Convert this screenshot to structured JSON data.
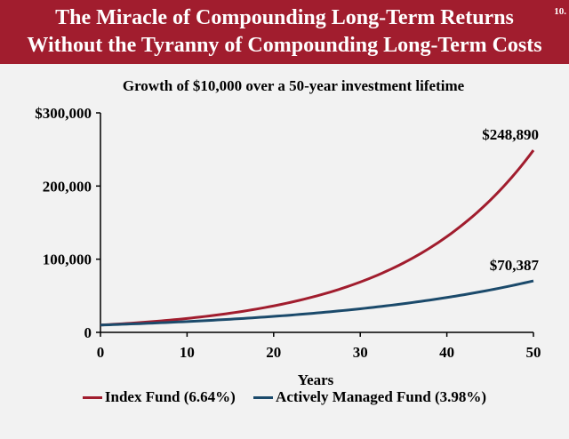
{
  "header": {
    "title_line1": "The Miracle of Compounding Long-Term Returns",
    "title_line2": "Without the Tyranny of Compounding Long-Term Costs",
    "slide_number": "10."
  },
  "chart_data": {
    "type": "line",
    "title": "Growth of $10,000 over a 50-year investment lifetime",
    "xlabel": "Years",
    "ylabel": "",
    "xlim": [
      0,
      50
    ],
    "ylim": [
      0,
      300000
    ],
    "x_ticks": [
      0,
      10,
      20,
      30,
      40,
      50
    ],
    "x_tick_labels": [
      "0",
      "10",
      "20",
      "30",
      "40",
      "50"
    ],
    "y_ticks": [
      0,
      100000,
      200000,
      300000
    ],
    "y_tick_labels": [
      "0",
      "100,000",
      "200,000",
      "$300,000"
    ],
    "grid": false,
    "legend_position": "bottom",
    "series": [
      {
        "name": "Index Fund (6.64%)",
        "color": "#a11d2e",
        "rate": 0.0664,
        "end_label": "$248,890",
        "x": [
          0,
          5,
          10,
          15,
          20,
          25,
          30,
          35,
          40,
          45,
          50
        ],
        "values": [
          10000,
          13792,
          19022,
          26236,
          36186,
          49907,
          68832,
          94935,
          130936,
          180588,
          248890
        ]
      },
      {
        "name": "Actively Managed Fund (3.98%)",
        "color": "#1b4a6b",
        "rate": 0.0398,
        "end_label": "$70,387",
        "x": [
          0,
          5,
          10,
          15,
          20,
          25,
          30,
          35,
          40,
          45,
          50
        ],
        "values": [
          10000,
          12153,
          14770,
          17949,
          21813,
          26510,
          32218,
          39155,
          47585,
          57831,
          70387
        ]
      }
    ]
  }
}
